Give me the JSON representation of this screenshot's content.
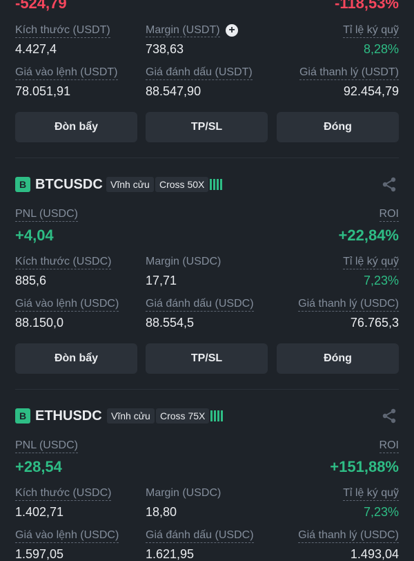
{
  "pos1": {
    "pnl": "-524,79",
    "roi": "-118,53%",
    "size_label": "Kích thước (USDT)",
    "size": "4.427,4",
    "margin_label": "Margin (USDT)",
    "margin": "738,63",
    "ratio_label": "Tỉ lệ ký quỹ",
    "ratio": "8,28%",
    "entry_label": "Giá vào lệnh (USDT)",
    "entry": "78.051,91",
    "mark_label": "Giá đánh dấu (USDT)",
    "mark": "88.547,90",
    "liq_label": "Giá thanh lý (USDT)",
    "liq": "92.454,79"
  },
  "pos2": {
    "badge": "B",
    "symbol": "BTCUSDC",
    "perp": "Vĩnh cửu",
    "leverage": "Cross 50X",
    "pnl_label": "PNL (USDC)",
    "pnl": "+4,04",
    "roi_label": "ROI",
    "roi": "+22,84%",
    "size_label": "Kích thước (USDC)",
    "size": "885,6",
    "margin_label": "Margin (USDC)",
    "margin": "17,71",
    "ratio_label": "Tỉ lệ ký quỹ",
    "ratio": "7,23%",
    "entry_label": "Giá vào lệnh (USDC)",
    "entry": "88.150,0",
    "mark_label": "Giá đánh dấu (USDC)",
    "mark": "88.554,5",
    "liq_label": "Giá thanh lý (USDC)",
    "liq": "76.765,3"
  },
  "pos3": {
    "badge": "B",
    "symbol": "ETHUSDC",
    "perp": "Vĩnh cửu",
    "leverage": "Cross 75X",
    "pnl_label": "PNL (USDC)",
    "pnl": "+28,54",
    "roi_label": "ROI",
    "roi": "+151,88%",
    "size_label": "Kích thước (USDC)",
    "size": "1.402,71",
    "margin_label": "Margin (USDC)",
    "margin": "18,80",
    "ratio_label": "Tỉ lệ ký quỹ",
    "ratio": "7,23%",
    "entry_label": "Giá vào lệnh (USDC)",
    "entry": "1.597,05",
    "mark_label": "Giá đánh dấu (USDC)",
    "mark": "1.621,95",
    "liq_label": "Giá thanh lý (USDC)",
    "liq": "1.493,04"
  },
  "buttons": {
    "leverage": "Đòn bẩy",
    "tpsl": "TP/SL",
    "close": "Đóng"
  },
  "colors": {
    "background": "#1e2329",
    "positive": "#2ebd85",
    "negative": "#f6465d",
    "button": "#2b3139"
  },
  "icons": {
    "add": "plus-circle-icon",
    "share": "share-icon",
    "signal": "signal-bars-icon"
  }
}
